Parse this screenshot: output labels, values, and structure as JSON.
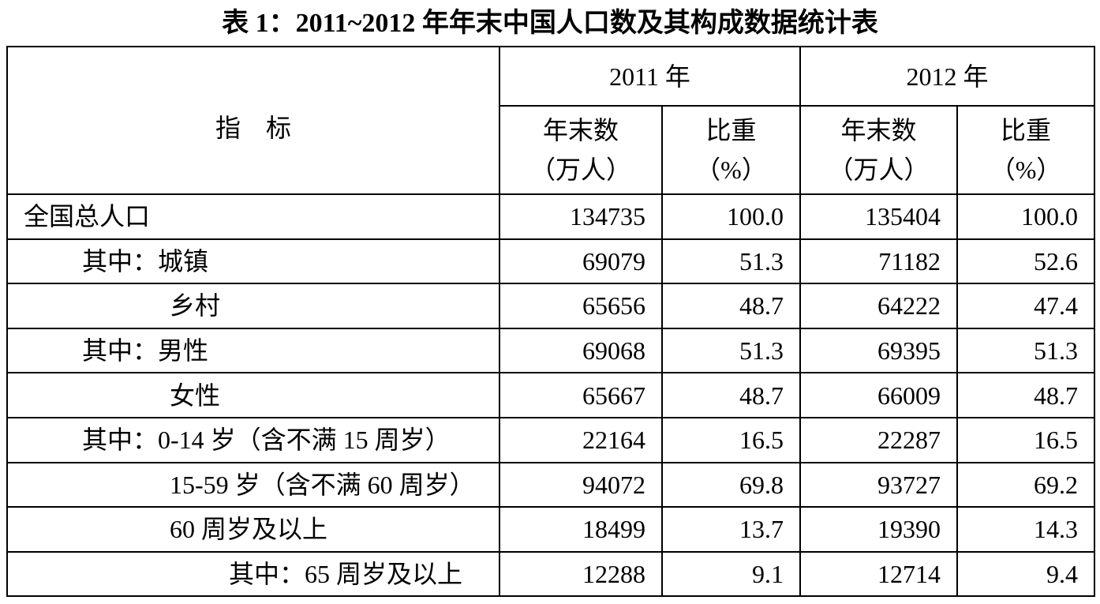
{
  "title": "表 1：2011~2012 年年末中国人口数及其构成数据统计表",
  "table": {
    "header": {
      "indicator": "指　标",
      "years": [
        "2011 年",
        "2012 年"
      ],
      "columns": [
        [
          "年末数",
          "（万人）"
        ],
        [
          "比重",
          "（%）"
        ],
        [
          "年末数",
          "（万人）"
        ],
        [
          "比重",
          "（%）"
        ]
      ]
    },
    "rows": [
      [
        "全国总人口",
        "134735",
        "100.0",
        "135404",
        "100.0"
      ],
      [
        "其中：城镇",
        "69079",
        "51.3",
        "71182",
        "52.6"
      ],
      [
        "乡村",
        "65656",
        "48.7",
        "64222",
        "47.4"
      ],
      [
        "其中：男性",
        "69068",
        "51.3",
        "69395",
        "51.3"
      ],
      [
        "女性",
        "65667",
        "48.7",
        "66009",
        "48.7"
      ],
      [
        "其中：0-14 岁（含不满 15 周岁）",
        "22164",
        "16.5",
        "22287",
        "16.5"
      ],
      [
        "15-59 岁（含不满 60 周岁）",
        "94072",
        "69.8",
        "93727",
        "69.2"
      ],
      [
        "60 周岁及以上",
        "18499",
        "13.7",
        "19390",
        "14.3"
      ],
      [
        "其中：65 周岁及以上",
        "12288",
        "9.1",
        "12714",
        "9.4"
      ]
    ]
  }
}
